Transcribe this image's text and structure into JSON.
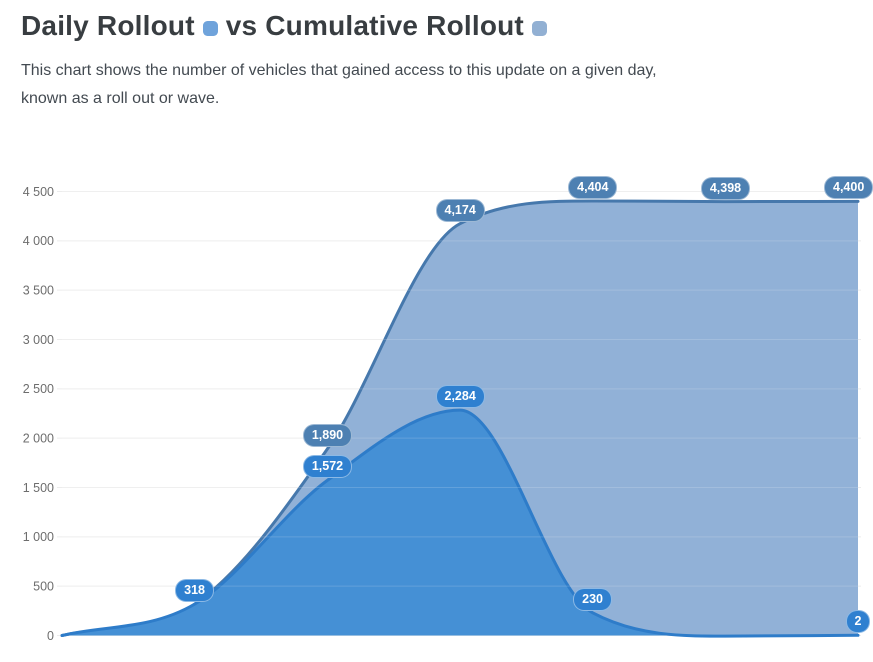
{
  "header": {
    "title_part_1": "Daily Rollout",
    "title_part_2": "vs Cumulative Rollout",
    "subtitle_line_1": "This chart shows the number of vehicles that gained access to this update on a given day,",
    "subtitle_line_2": "known as a roll out or wave."
  },
  "legend": {
    "daily_marker_color": "#6fa3db",
    "cumulative_marker_color": "#92b0d3"
  },
  "chart_data": {
    "type": "area",
    "title": "Daily Rollout vs Cumulative Rollout",
    "x_axis_labels_visible": false,
    "point_count": 7,
    "series": [
      {
        "name": "Cumulative Rollout",
        "values": [
          0,
          318,
          1890,
          4174,
          4404,
          4398,
          4400
        ],
        "point_labels": [
          "",
          "",
          "1,890",
          "4,174",
          "4,404",
          "4,398",
          "4,400"
        ],
        "line_color": "#4678ac",
        "fill_color": "#91b1d7",
        "label_bg": "#4d80b2"
      },
      {
        "name": "Daily Rollout",
        "values": [
          0,
          318,
          1572,
          2284,
          230,
          -6,
          2
        ],
        "point_labels": [
          "",
          "318",
          "1,572",
          "2,284",
          "230",
          "",
          "2"
        ],
        "line_color": "#2e7cc9",
        "fill_color": "#4590d5",
        "label_bg": "#2f80d0"
      }
    ],
    "ylim": [
      0,
      4500
    ],
    "ytick_step": 500,
    "ytick_labels": [
      "0",
      "500",
      "1 000",
      "1 500",
      "2 000",
      "2 500",
      "3 000",
      "3 500",
      "4 000",
      "4 500"
    ],
    "grid": true,
    "legend_position": "in-title",
    "background": "#ffffff"
  }
}
